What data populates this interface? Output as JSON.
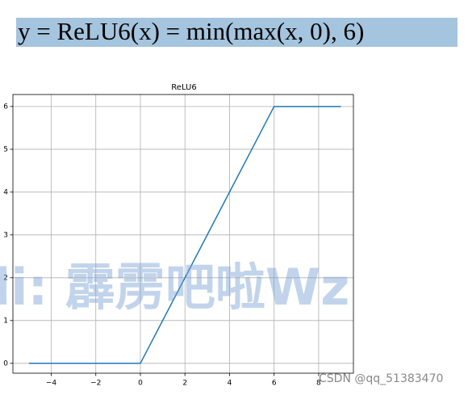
{
  "formula": "y = ReLU6(x) = min(max(x, 0), 6)",
  "chart_data": {
    "type": "line",
    "title": "ReLU6",
    "x": [
      -5,
      0,
      6,
      9
    ],
    "values": [
      0,
      0,
      6,
      6
    ],
    "color": "#1f77b4",
    "xlim": [
      -5.72,
      9.56
    ],
    "ylim": [
      -0.23,
      6.28
    ],
    "xticks": [
      {
        "value": -4,
        "label": "−4"
      },
      {
        "value": -2,
        "label": "−2"
      },
      0,
      2,
      4,
      6,
      8
    ],
    "yticks": [
      0,
      1,
      2,
      3,
      4,
      5,
      6
    ],
    "grid": true
  },
  "watermarks": [
    "li:  霹雳吧啦Wz",
    "CSDN @qq_51383470"
  ]
}
